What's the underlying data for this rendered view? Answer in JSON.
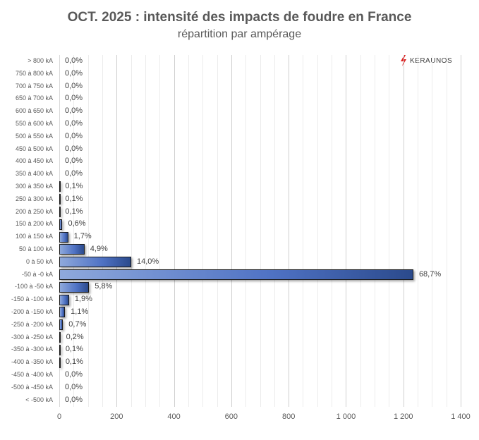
{
  "header": {
    "title": "OCT. 2025 : intensité des impacts de foudre en France",
    "subtitle": "répartition par ampérage"
  },
  "logo": {
    "text": "KERAUNOS",
    "color": "#e02020"
  },
  "colors": {
    "bar_light": "#8fa9dc",
    "bar_mid": "#4f72c4",
    "bar_dark": "#2b4a8c",
    "bar_border": "#1a1a1a"
  },
  "chart_data": {
    "type": "bar",
    "orientation": "horizontal",
    "title": "OCT. 2025 : intensité des impacts de foudre en France",
    "subtitle": "répartition par ampérage",
    "xlabel": "",
    "ylabel": "",
    "xlim": [
      0,
      1400
    ],
    "x_ticks": [
      "0",
      "200",
      "400",
      "600",
      "800",
      "1 000",
      "1 200",
      "1 400"
    ],
    "grid": {
      "major_step": 200,
      "minor_step": 50
    },
    "categories": [
      "> 800 kA",
      "750 à 800 kA",
      "700 à 750 kA",
      "650 à 700 kA",
      "600 à 650 kA",
      "550 à 600 kA",
      "500 à 550 kA",
      "450 à 500 kA",
      "400 à 450 kA",
      "350 à 400 kA",
      "300 à 350 kA",
      "250 à 300 kA",
      "200 à 250 kA",
      "150 à 200 kA",
      "100 à 150 kA",
      "50 à 100 kA",
      "0 à 50 kA",
      "-50 à -0 kA",
      "-100 à -50 kA",
      "-150 à -100 kA",
      "-200 à -150 kA",
      "-250 à -200 kA",
      "-300 à -250 kA",
      "-350 à -300 kA",
      "-400 à -350 kA",
      "-450 à -400 kA",
      "-500 à -450 kA",
      "< -500 kA"
    ],
    "values": [
      0,
      0,
      0,
      0,
      0,
      0,
      0,
      0,
      0,
      0,
      1,
      1,
      1,
      11,
      31,
      88,
      251,
      1235,
      104,
      34,
      20,
      13,
      4,
      2,
      2,
      0,
      0,
      0
    ],
    "labels": [
      "0,0%",
      "0,0%",
      "0,0%",
      "0,0%",
      "0,0%",
      "0,0%",
      "0,0%",
      "0,0%",
      "0,0%",
      "0,0%",
      "0,1%",
      "0,1%",
      "0,1%",
      "0,6%",
      "1,7%",
      "4,9%",
      "14,0%",
      "68,7%",
      "5,8%",
      "1,9%",
      "1,1%",
      "0,7%",
      "0,2%",
      "0,1%",
      "0,1%",
      "0,0%",
      "0,0%",
      "0,0%"
    ],
    "legend": null,
    "annotations": [
      "KERAUNOS"
    ]
  }
}
